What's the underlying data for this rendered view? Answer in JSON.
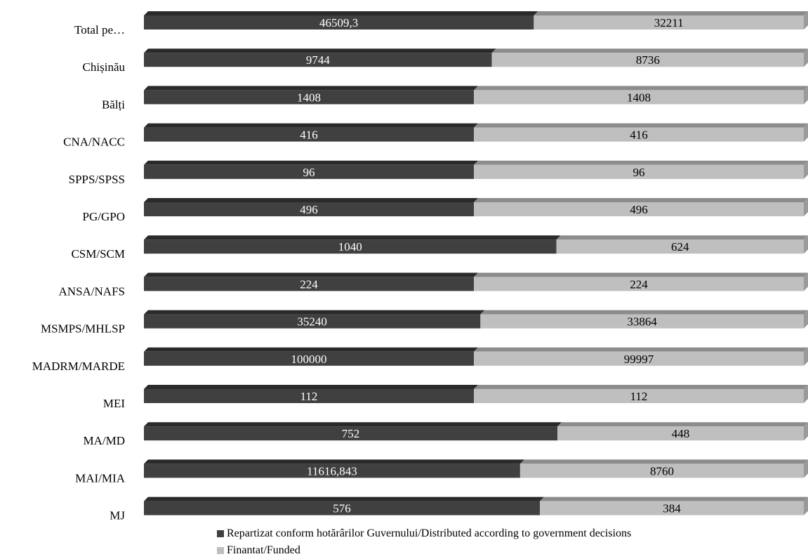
{
  "chart_data": {
    "type": "bar",
    "orientation": "horizontal",
    "stacked": "percent",
    "three_d": true,
    "categories": [
      "Total pe…",
      "Chișinău",
      "Bălți",
      "CNA/NACC",
      "SPPS/SPSS",
      "PG/GPO",
      "CSM/SCM",
      "ANSA/NAFS",
      "MSMPS/MHLSP",
      "MADRM/MARDE",
      "MEI",
      "MA/MD",
      "MAI/MIA",
      "MJ"
    ],
    "series": [
      {
        "name": "Repartizat conform hotărârilor Guvernului/Distributed according to government decisions",
        "values": [
          46509.3,
          9744,
          1408,
          416,
          96,
          496,
          1040,
          224,
          35240,
          100000,
          112,
          752,
          11616.843,
          576
        ],
        "labels": [
          "46509,3",
          "9744",
          "1408",
          "416",
          "96",
          "496",
          "1040",
          "224",
          "35240",
          "100000",
          "112",
          "752",
          "11616,843",
          "576"
        ],
        "color": "#404040"
      },
      {
        "name": "Finantat/Funded",
        "values": [
          32211,
          8736,
          1408,
          416,
          96,
          496,
          624,
          224,
          33864,
          99997,
          112,
          448,
          8760,
          384
        ],
        "labels": [
          "32211",
          "8736",
          "1408",
          "416",
          "96",
          "496",
          "624",
          "224",
          "33864",
          "99997",
          "112",
          "448",
          "8760",
          "384"
        ],
        "color": "#bfbfbf"
      }
    ],
    "grid": false,
    "legend": "bottom"
  }
}
